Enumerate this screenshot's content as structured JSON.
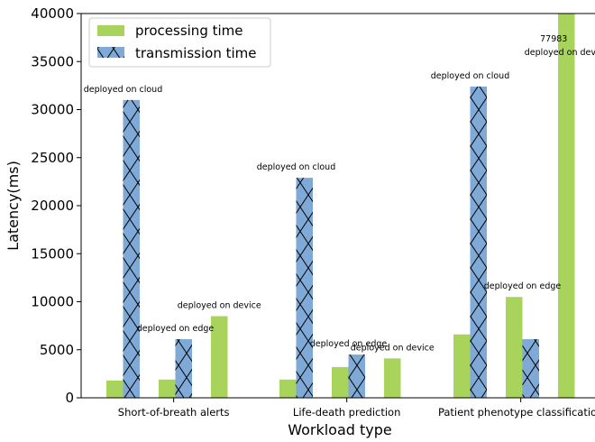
{
  "chart_data": {
    "type": "bar",
    "categories": [
      "Short-of-breath alerts",
      "Life-death prediction",
      "Patient phenotype classification"
    ],
    "xlabel": "Workload type",
    "ylabel": "Latency(ms)",
    "ylim": [
      0,
      40000
    ],
    "yticks": [
      0,
      5000,
      10000,
      15000,
      20000,
      25000,
      30000,
      35000,
      40000
    ],
    "legend_position": "top-left",
    "grid": false,
    "series": [
      {
        "name": "processing time",
        "color": "#a8d45c",
        "hatch": "none"
      },
      {
        "name": "transmission time",
        "color": "#7fa9d6",
        "hatch": "x"
      }
    ],
    "groups": [
      {
        "category": "Short-of-breath alerts",
        "deployments": [
          {
            "label": "deployed on cloud",
            "processing": 1800,
            "transmission": 31000
          },
          {
            "label": "deployed on edge",
            "processing": 1900,
            "transmission": 6100
          },
          {
            "label": "deployed on device",
            "processing": 8500,
            "transmission": 0
          }
        ]
      },
      {
        "category": "Life-death prediction",
        "deployments": [
          {
            "label": "deployed on cloud",
            "processing": 1900,
            "transmission": 22900
          },
          {
            "label": "deployed on edge",
            "processing": 3200,
            "transmission": 4500
          },
          {
            "label": "deployed on device",
            "processing": 4100,
            "transmission": 0
          }
        ]
      },
      {
        "category": "Patient phenotype classification",
        "deployments": [
          {
            "label": "deployed on cloud",
            "processing": 6600,
            "transmission": 32400
          },
          {
            "label": "deployed on edge",
            "processing": 10500,
            "transmission": 6100
          },
          {
            "label": "deployed on device",
            "processing": 77983,
            "transmission": 0,
            "value_label": "77983"
          }
        ]
      }
    ]
  }
}
